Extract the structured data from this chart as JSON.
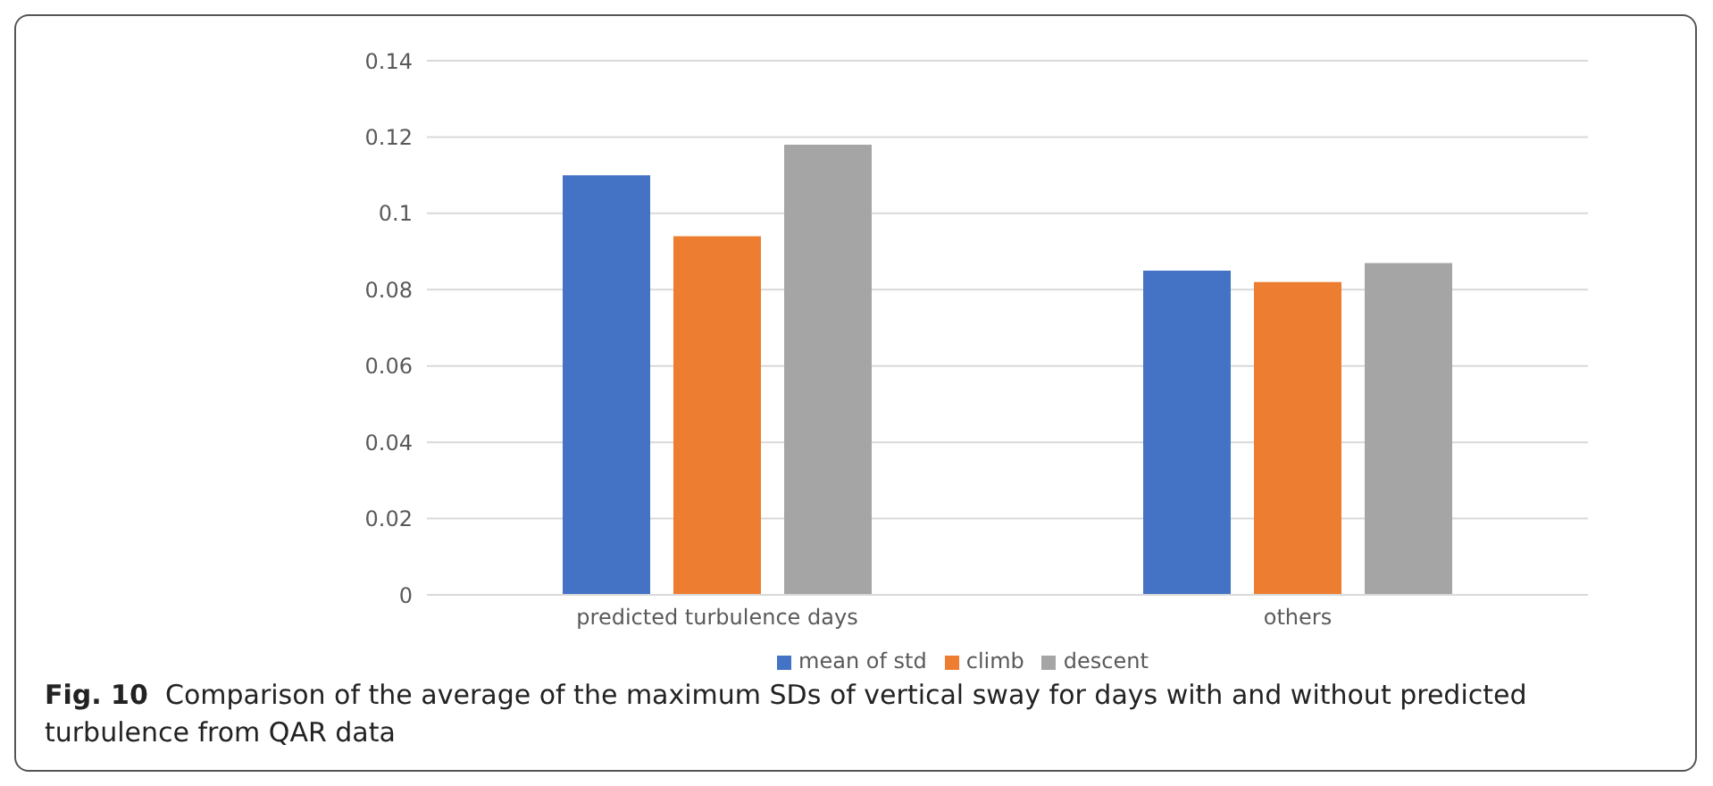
{
  "chart_data": {
    "type": "bar",
    "categories": [
      "predicted turbulence days",
      "others"
    ],
    "series": [
      {
        "name": "mean of std",
        "color": "#4472c4",
        "values": [
          0.11,
          0.085
        ]
      },
      {
        "name": "climb",
        "color": "#ed7d31",
        "values": [
          0.094,
          0.082
        ]
      },
      {
        "name": "descent",
        "color": "#a5a5a5",
        "values": [
          0.118,
          0.087
        ]
      }
    ],
    "ylim": [
      0,
      0.14
    ],
    "yticks": [
      0,
      0.02,
      0.04,
      0.06,
      0.08,
      0.1,
      0.12,
      0.14
    ],
    "grid": "y",
    "legend": "bottom",
    "annotations": [
      "Fig. 10",
      "Comparison of the average of the maximum SDs of vertical sway for days with and without predicted turbulence from QAR data"
    ]
  }
}
